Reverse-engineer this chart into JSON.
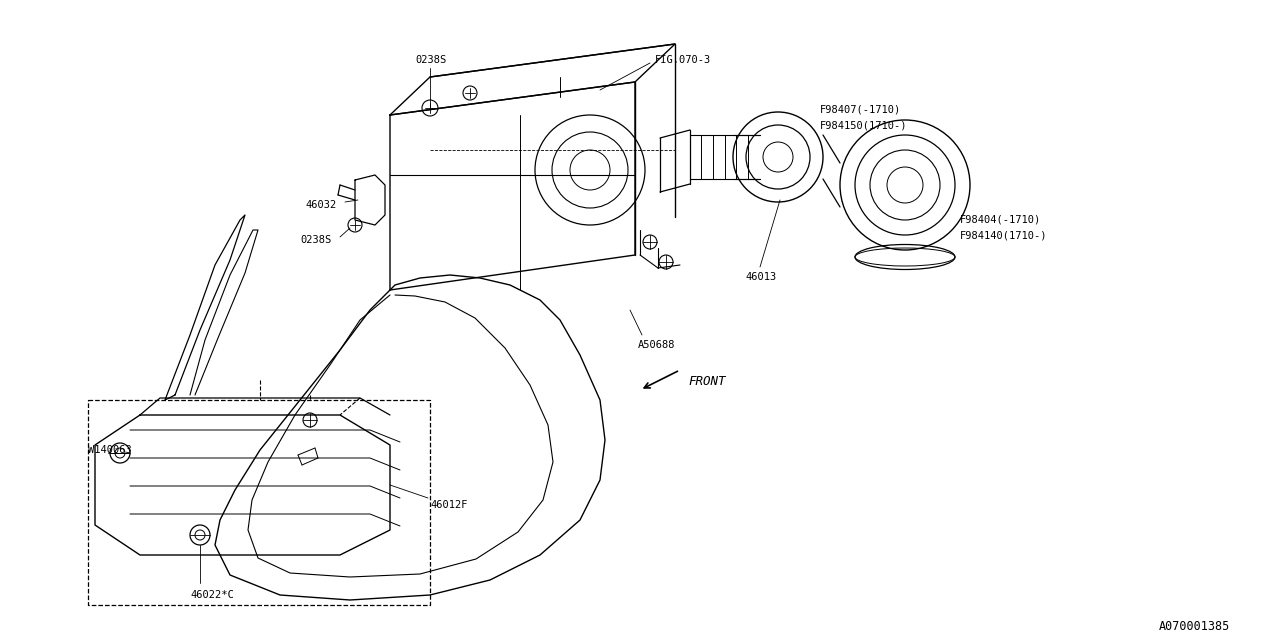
{
  "bg_color": "#ffffff",
  "line_color": "#000000",
  "fig_width": 12.8,
  "fig_height": 6.4,
  "dpi": 100,
  "labels": {
    "fig_ref": "FIG.070-3",
    "part1_top": "0238S",
    "part2": "46032",
    "part3": "0238S",
    "part4": "46013",
    "part5": "F98407(-1710)",
    "part5b": "F984150(1710-)",
    "part6": "F98404(-1710)",
    "part6b": "F984140(1710-)",
    "part7": "A50688",
    "part8": "46012F",
    "part9": "46022*C",
    "part10": "W140063",
    "front_label": "FRONT",
    "diagram_id": "A070001385"
  },
  "font_family": "monospace",
  "label_fontsize": 7.5,
  "diagram_id_fontsize": 8.5
}
